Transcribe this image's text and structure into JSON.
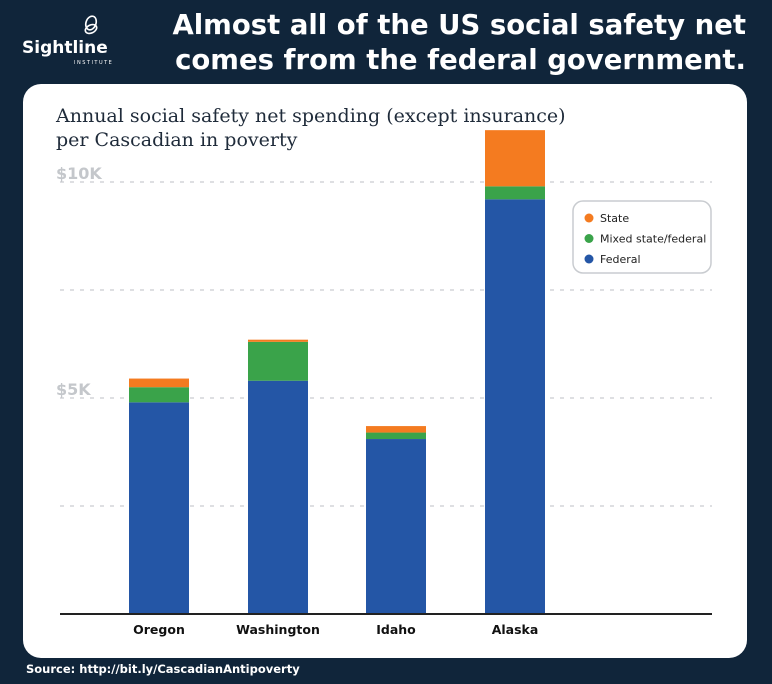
{
  "header": {
    "headline_line1": "Almost all of the US social safety net",
    "headline_line2": "comes from the federal government.",
    "logo_name": "Sightline",
    "logo_sub": "INSTITUTE"
  },
  "footer": {
    "source": "Source: http://bit.ly/CascadianAntipoverty"
  },
  "colors": {
    "federal": "#2456a6",
    "mixed": "#3aa34a",
    "state": "#f47b20",
    "background": "#10253a",
    "card": "#ffffff"
  },
  "chart_data": {
    "type": "bar",
    "stacked": true,
    "title_line1": "Annual social safety net spending (except insurance)",
    "title_line2": "per Cascadian in poverty",
    "categories": [
      "Oregon",
      "Washington",
      "Idaho",
      "Alaska"
    ],
    "series": [
      {
        "name": "Federal",
        "color": "#2456a6",
        "values": [
          4900,
          5400,
          4050,
          9600
        ]
      },
      {
        "name": "Mixed state/federal",
        "color": "#3aa34a",
        "values": [
          350,
          900,
          150,
          300
        ]
      },
      {
        "name": "State",
        "color": "#f47b20",
        "values": [
          200,
          50,
          150,
          1300
        ]
      }
    ],
    "y_tick_labels": [
      {
        "value": 5000,
        "label": "$5K"
      },
      {
        "value": 10000,
        "label": "$10K"
      }
    ],
    "gridlines": [
      2500,
      5000,
      7500,
      10000
    ],
    "ylim": [
      0,
      10000
    ],
    "grid": true,
    "legend_position": "top-right"
  }
}
